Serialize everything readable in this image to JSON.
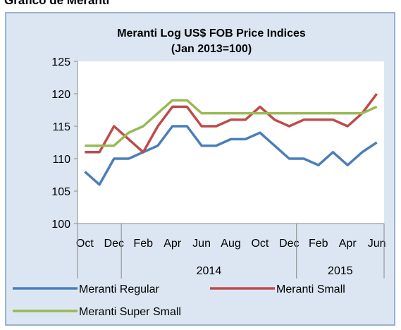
{
  "heading": "Gráfico de Meranti",
  "chart_data": {
    "type": "line",
    "title": "Meranti Log US$ FOB Price Indices",
    "subtitle": "(Jan 2013=100)",
    "categories": [
      "Oct",
      null,
      "Dec",
      null,
      "Feb",
      null,
      "Apr",
      null,
      "Jun",
      null,
      "Aug",
      null,
      "Oct",
      null,
      "Dec",
      null,
      "Feb",
      null,
      "Apr",
      null,
      "Jun"
    ],
    "x_groups": [
      {
        "label": null,
        "span": 3
      },
      {
        "label": "2014",
        "span": 12
      },
      {
        "label": "2015",
        "span": 6
      }
    ],
    "series": [
      {
        "name": "Meranti Regular",
        "color": "#4a7ebb",
        "values": [
          108,
          106,
          110,
          110,
          111,
          112,
          115,
          115,
          112,
          112,
          113,
          113,
          114,
          112,
          110,
          110,
          109,
          111,
          109,
          111,
          112.5
        ]
      },
      {
        "name": "Meranti Small",
        "color": "#be4b48",
        "values": [
          111,
          111,
          115,
          113,
          111,
          115,
          118,
          118,
          115,
          115,
          116,
          116,
          118,
          116,
          115,
          116,
          116,
          116,
          115,
          117,
          120
        ]
      },
      {
        "name": "Meranti Super Small",
        "color": "#98b954",
        "values": [
          112,
          112,
          112,
          114,
          115,
          117,
          119,
          119,
          117,
          117,
          117,
          117,
          117,
          117,
          117,
          117,
          117,
          117,
          117,
          117,
          118
        ]
      }
    ],
    "ylim": [
      100,
      125
    ],
    "yticks": [
      100,
      105,
      110,
      115,
      120,
      125
    ],
    "grid": false,
    "legend": "bottom"
  }
}
